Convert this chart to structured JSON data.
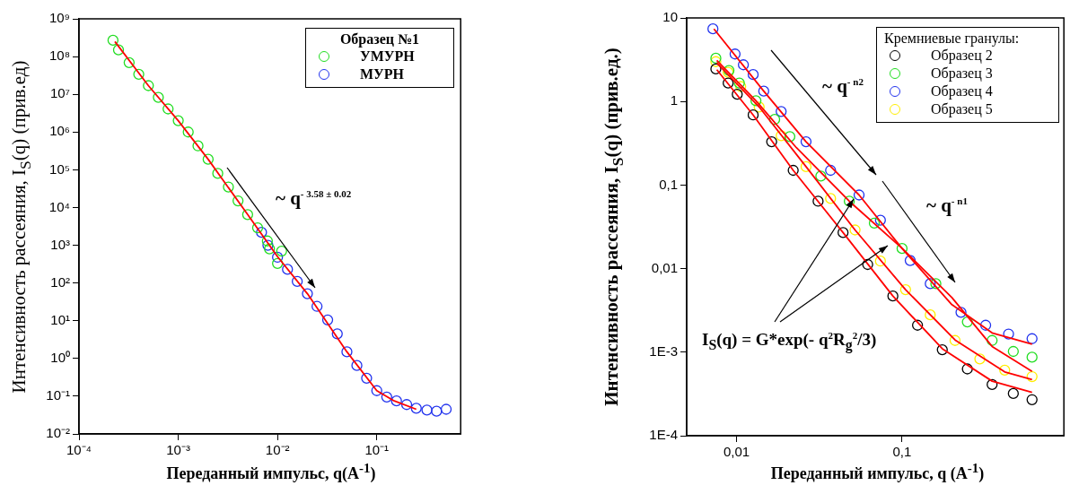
{
  "chart_data": [
    {
      "type": "scatter",
      "xlabel": "Переданный импульс, q(A$^{-1}$)",
      "ylabel": "Интенсивность рассеяния, I$_{S}$(q) (прив.ед)",
      "legend_title": "Образец №1",
      "legend": "top right",
      "marker": "circle",
      "log": "xy",
      "xlim": [
        0.0001,
        0.7
      ],
      "xticks": [
        {
          "value": 0.0001,
          "label": "10⁻⁴"
        },
        {
          "value": 0.001,
          "label": "10⁻³"
        },
        {
          "value": 0.01,
          "label": "10⁻²"
        },
        {
          "value": 0.1,
          "label": "10⁻¹"
        }
      ],
      "ylim": [
        0.01,
        1000000000
      ],
      "yticks": [
        {
          "value": 0.01,
          "label": "10⁻²"
        },
        {
          "value": 0.1,
          "label": "10⁻¹"
        },
        {
          "value": 1,
          "label": "10⁰"
        },
        {
          "value": 10,
          "label": "10¹"
        },
        {
          "value": 100,
          "label": "10²"
        },
        {
          "value": 1000,
          "label": "10³"
        },
        {
          "value": 10000,
          "label": "10⁴"
        },
        {
          "value": 100000,
          "label": "10⁵"
        },
        {
          "value": 1000000,
          "label": "10⁶"
        },
        {
          "value": 10000000,
          "label": "10⁷"
        },
        {
          "value": 100000000,
          "label": "10⁸"
        },
        {
          "value": 1000000000,
          "label": "10⁹"
        }
      ],
      "series": [
        {
          "name": "УМУРН",
          "color": "#22dd22",
          "x": [
            0.00022,
            0.00025,
            0.00032,
            0.0004,
            0.0005,
            0.00063,
            0.00079,
            0.001,
            0.00126,
            0.00158,
            0.002,
            0.0025,
            0.0032,
            0.004,
            0.005,
            0.0063,
            0.0079,
            0.0083,
            0.01,
            0.011
          ],
          "values": [
            270000000,
            150000000,
            69000000,
            34000000,
            17000000,
            8300000,
            4100000,
            2000000,
            1000000,
            430000,
            190000,
            80000,
            35000,
            15000,
            6500,
            2900,
            1300,
            800,
            330,
            700
          ]
        },
        {
          "name": "МУРН",
          "color": "#2233ee",
          "x": [
            0.0069,
            0.008,
            0.01,
            0.0126,
            0.0158,
            0.02,
            0.025,
            0.032,
            0.04,
            0.05,
            0.063,
            0.079,
            0.1,
            0.126,
            0.158,
            0.2,
            0.25,
            0.32,
            0.4,
            0.5
          ],
          "values": [
            2200,
            1000,
            480,
            230,
            110,
            52,
            24,
            10.5,
            4.5,
            1.5,
            0.65,
            0.3,
            0.14,
            0.095,
            0.075,
            0.06,
            0.048,
            0.043,
            0.04,
            0.045
          ]
        },
        {
          "type": "line",
          "marker": "none",
          "color": "#ff0000",
          "x": [
            0.00023,
            0.0005,
            0.001,
            0.002,
            0.005,
            0.01,
            0.02,
            0.05,
            0.1,
            0.15,
            0.25
          ],
          "values": [
            250000000,
            17000000,
            2000000,
            190000,
            6500,
            500,
            52,
            1.5,
            0.14,
            0.075,
            0.045
          ]
        }
      ],
      "annotations": [
        "~ q$^{- 3.58 ± 0.02}$"
      ]
    },
    {
      "type": "scatter",
      "xlabel": "Переданный импульс, q (A$^{-1}$)",
      "ylabel": "Интенсивность рассеяния, I$_{S}$(q) (прив.ед.)",
      "legend_title": "Кремниевые гранулы:",
      "legend": "top right",
      "marker": "circle",
      "log": "xy",
      "xlim": [
        0.005,
        0.95
      ],
      "xticks": [
        {
          "value": 0.01,
          "label": "0,01"
        },
        {
          "value": 0.1,
          "label": "0,1"
        }
      ],
      "ylim": [
        0.0001,
        10
      ],
      "yticks": [
        {
          "value": 0.0001,
          "label": "1E-4"
        },
        {
          "value": 0.001,
          "label": "1E-3"
        },
        {
          "value": 0.01,
          "label": "0,01"
        },
        {
          "value": 0.1,
          "label": "0,1"
        },
        {
          "value": 1,
          "label": "1"
        },
        {
          "value": 10,
          "label": "10"
        }
      ],
      "series": [
        {
          "name": "Образец 2",
          "color": "#000000",
          "x": [
            0.0075,
            0.0089,
            0.0101,
            0.0126,
            0.0163,
            0.022,
            0.0311,
            0.044,
            0.062,
            0.088,
            0.124,
            0.175,
            0.248,
            0.35,
            0.47,
            0.61
          ],
          "values": [
            2.45,
            1.66,
            1.22,
            0.69,
            0.33,
            0.15,
            0.064,
            0.027,
            0.0112,
            0.0047,
            0.0021,
            0.00107,
            0.00063,
            0.00041,
            0.00032,
            0.00027
          ]
        },
        {
          "name": "Образец 3",
          "color": "#22dd22",
          "x": [
            0.0075,
            0.009,
            0.0104,
            0.0131,
            0.017,
            0.021,
            0.0323,
            0.048,
            0.068,
            0.1,
            0.16,
            0.248,
            0.35,
            0.47,
            0.61
          ],
          "values": [
            3.3,
            2.35,
            1.66,
            1.02,
            0.61,
            0.38,
            0.128,
            0.064,
            0.035,
            0.0174,
            0.0066,
            0.0023,
            0.00138,
            0.00102,
            0.00087
          ]
        },
        {
          "name": "Образец 4",
          "color": "#2233ee",
          "x": [
            0.0072,
            0.0098,
            0.011,
            0.0126,
            0.0146,
            0.0186,
            0.0263,
            0.037,
            0.055,
            0.074,
            0.112,
            0.148,
            0.227,
            0.32,
            0.44,
            0.61
          ],
          "values": [
            7.4,
            3.7,
            2.75,
            2.1,
            1.33,
            0.76,
            0.33,
            0.15,
            0.076,
            0.038,
            0.0125,
            0.0066,
            0.003,
            0.0021,
            0.00165,
            0.00145
          ]
        },
        {
          "name": "Образец 5",
          "color": "#ffee00",
          "x": [
            0.0075,
            0.0089,
            0.0106,
            0.0137,
            0.0186,
            0.0263,
            0.037,
            0.052,
            0.074,
            0.105,
            0.148,
            0.209,
            0.295,
            0.417,
            0.61
          ],
          "values": [
            3.0,
            2.24,
            1.51,
            0.86,
            0.39,
            0.166,
            0.069,
            0.029,
            0.0123,
            0.0056,
            0.0028,
            0.00138,
            0.00083,
            0.00061,
            0.00051
          ]
        },
        {
          "type": "line",
          "marker": "none",
          "color": "#ff0000",
          "x": [
            0.0073,
            0.0146,
            0.0263,
            0.055,
            0.1,
            0.2,
            0.35,
            0.61
          ],
          "values": [
            7.4,
            1.33,
            0.33,
            0.076,
            0.0174,
            0.0037,
            0.0017,
            0.00125
          ]
        },
        {
          "type": "line",
          "marker": "none",
          "color": "#ff0000",
          "x": [
            0.0076,
            0.0131,
            0.023,
            0.048,
            0.1,
            0.2,
            0.35,
            0.61
          ],
          "values": [
            3.1,
            1.02,
            0.28,
            0.064,
            0.0175,
            0.0045,
            0.00117,
            0.00059
          ]
        },
        {
          "type": "line",
          "marker": "none",
          "color": "#ff0000",
          "x": [
            0.0076,
            0.0126,
            0.022,
            0.044,
            0.088,
            0.175,
            0.35,
            0.61
          ],
          "values": [
            2.4,
            0.69,
            0.15,
            0.027,
            0.0047,
            0.0011,
            0.00045,
            0.00033
          ]
        },
        {
          "type": "line",
          "marker": "none",
          "color": "#ff0000",
          "x": [
            0.0076,
            0.0137,
            0.0263,
            0.052,
            0.105,
            0.209,
            0.417,
            0.61
          ],
          "values": [
            2.9,
            0.86,
            0.166,
            0.029,
            0.0056,
            0.0014,
            0.00058,
            0.00047
          ]
        }
      ],
      "annotations": [
        "~ q$^{- n2}$",
        "~ q$^{- n1}$",
        {
          "text": "I$_{S}$(q) = G*exp(- q$^{2}$R$_{g}$$^{2}$/3)",
          "x": 0.051,
          "y": 0.068
        }
      ]
    }
  ]
}
